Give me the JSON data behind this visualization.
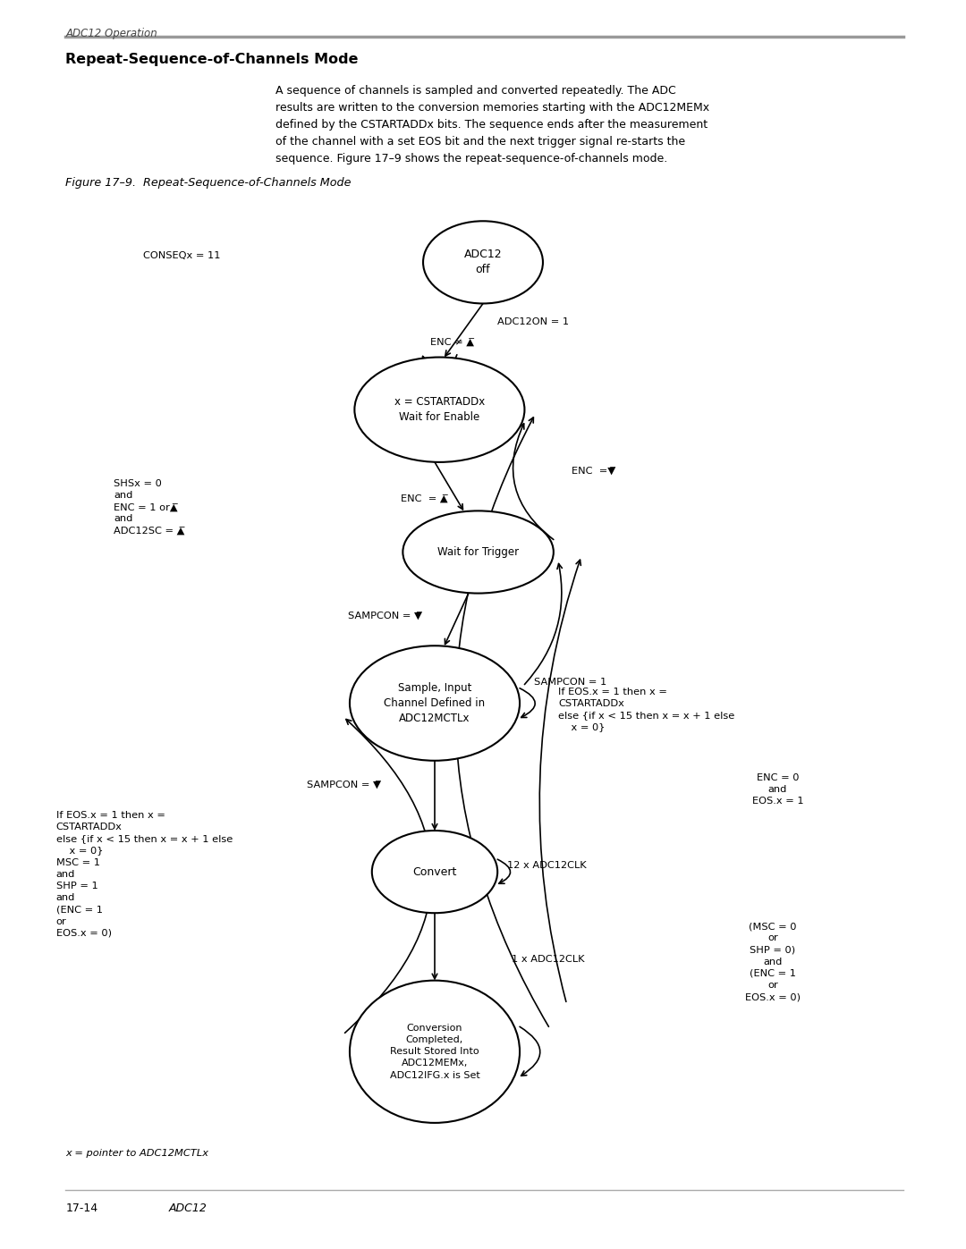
{
  "title_section": "ADC12 Operation",
  "section_title": "Repeat-Sequence-of-Channels Mode",
  "body_text": "A sequence of channels is sampled and converted repeatedly. The ADC\nresults are written to the conversion memories starting with the ADC12MEMx\ndefined by the CSTARTADDx bits. The sequence ends after the measurement\nof the channel with a set EOS bit and the next trigger signal re-starts the\nsequence. Figure 17–9 shows the repeat-sequence-of-channels mode.",
  "figure_caption": "Figure 17–9.  Repeat-Sequence-of-Channels Mode",
  "footnote": "x = pointer to ADC12MCTLx",
  "page_left": "17-14",
  "page_right": "ADC12",
  "bg_color": "#ffffff",
  "node_bg": "#ffffff",
  "node_edge": "#000000",
  "arrow_color": "#000000",
  "text_color": "#000000"
}
